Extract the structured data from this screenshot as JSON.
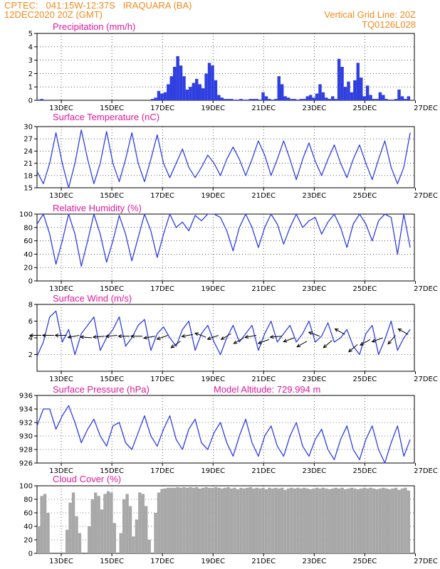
{
  "header": {
    "line1": "CPTEC:   041:15W-12:37S   IRAQUARA (BA)",
    "line2": "12DEC2020 20Z (GMT)",
    "vertical_grid": "Vertical Grid Line: 20Z",
    "code": "TQ0126L028"
  },
  "colors": {
    "series": "#2f3fe0",
    "cloud": "#a8a8a8",
    "title": "#e0199b",
    "header": "#f08a1c"
  },
  "x_dates": [
    "13DEC",
    "15DEC",
    "17DEC",
    "19DEC",
    "21DEC",
    "23DEC",
    "25DEC",
    "27DEC"
  ],
  "chart_data": [
    {
      "id": "precip",
      "type": "bar",
      "title": "Precipitation (mm/h)",
      "ylim": [
        0,
        5
      ],
      "yticks": [
        0,
        1,
        2,
        3,
        4,
        5
      ],
      "x_hours": [
        0,
        3,
        108,
        111,
        114,
        117,
        120,
        123,
        126,
        129,
        132,
        135,
        138,
        141,
        144,
        147,
        150,
        153,
        156,
        159,
        162,
        165,
        168,
        171,
        174,
        177,
        180,
        183,
        186,
        189,
        192,
        195,
        198,
        201,
        204,
        207,
        210,
        213,
        216,
        219,
        222,
        225,
        228,
        231,
        234,
        237,
        240,
        243,
        246,
        249,
        252,
        255,
        258,
        261,
        264,
        267,
        270,
        273,
        276,
        279,
        282,
        285,
        288,
        291,
        294,
        297,
        300,
        303,
        306,
        309,
        312,
        315,
        318,
        321,
        324,
        327,
        330,
        333,
        336,
        339,
        342,
        345,
        348,
        351
      ],
      "values": [
        0.05,
        0.1,
        0.1,
        0.2,
        0.7,
        0.5,
        0.6,
        1.2,
        1.8,
        2.5,
        3.3,
        2.6,
        1.8,
        0.8,
        1.0,
        1.3,
        1.6,
        1.2,
        0.9,
        2.0,
        2.8,
        2.6,
        1.5,
        0.4,
        0.2,
        0.1,
        0.1,
        0.1,
        0.05,
        0.05,
        0.1,
        0.05,
        0.05,
        0.1,
        0.1,
        0.1,
        0.05,
        0.6,
        0.3,
        0.1,
        0.05,
        0.1,
        1.8,
        1.2,
        0.3,
        0.2,
        0.1,
        0.1,
        0.05,
        0.1,
        0.1,
        0.3,
        0.4,
        0.2,
        0.5,
        1.2,
        0.6,
        0.2,
        0.1,
        0.3,
        0.1,
        3.1,
        2.5,
        1.0,
        1.4,
        0.6,
        1.5,
        2.8,
        1.7,
        0.3,
        1.1,
        0.4,
        0.1,
        0.1,
        0.6,
        0.4,
        0.1,
        0.05,
        0.05,
        0.1,
        0.8,
        0.3,
        0.1,
        0.3
      ]
    },
    {
      "id": "temp",
      "type": "line",
      "title": "Surface Temperature (nC)",
      "ylim": [
        15,
        30
      ],
      "yticks": [
        15,
        18,
        21,
        24,
        27,
        30
      ],
      "x_hours": [
        0,
        6,
        12,
        18,
        24,
        30,
        36,
        42,
        48,
        54,
        60,
        66,
        72,
        78,
        84,
        90,
        96,
        102,
        108,
        114,
        120,
        126,
        132,
        138,
        144,
        150,
        156,
        162,
        168,
        174,
        180,
        186,
        192,
        198,
        204,
        210,
        216,
        222,
        228,
        234,
        240,
        246,
        252,
        258,
        264,
        270,
        276,
        282,
        288,
        294,
        300,
        306,
        312,
        318,
        324,
        330,
        336,
        342,
        348,
        354
      ],
      "values": [
        19,
        16,
        21,
        28.5,
        21,
        15,
        21,
        29.2,
        22,
        16,
        21,
        28.8,
        21,
        16.5,
        22,
        28.5,
        21,
        16.5,
        22,
        28,
        21,
        17.5,
        21,
        24.5,
        20,
        17.5,
        20,
        23,
        21,
        18,
        22,
        25,
        22,
        18,
        22,
        26.5,
        23,
        18,
        22,
        26.5,
        22,
        17,
        22,
        26,
        21.5,
        18,
        22,
        25.5,
        21,
        17.5,
        22,
        25.5,
        21,
        17,
        22,
        26.5,
        20,
        16,
        20,
        28.5
      ]
    },
    {
      "id": "rh",
      "type": "line",
      "title": "Relative Humidity (%)",
      "ylim": [
        0,
        100
      ],
      "yticks": [
        0,
        20,
        40,
        60,
        80,
        100
      ],
      "x_hours": [
        0,
        6,
        12,
        18,
        24,
        30,
        36,
        42,
        48,
        54,
        60,
        66,
        72,
        78,
        84,
        90,
        96,
        102,
        108,
        114,
        120,
        126,
        132,
        138,
        144,
        150,
        156,
        162,
        168,
        174,
        180,
        186,
        192,
        198,
        204,
        210,
        216,
        222,
        228,
        234,
        240,
        246,
        252,
        258,
        264,
        270,
        276,
        282,
        288,
        294,
        300,
        306,
        312,
        318,
        324,
        330,
        336,
        342,
        348,
        354
      ],
      "values": [
        85,
        100,
        70,
        25,
        60,
        100,
        70,
        22,
        60,
        100,
        70,
        28,
        60,
        98,
        70,
        30,
        65,
        100,
        75,
        35,
        70,
        100,
        80,
        88,
        75,
        98,
        90,
        100,
        100,
        95,
        75,
        45,
        80,
        100,
        80,
        50,
        80,
        100,
        85,
        55,
        80,
        100,
        80,
        90,
        95,
        70,
        88,
        100,
        80,
        50,
        85,
        100,
        85,
        60,
        90,
        100,
        95,
        40,
        100,
        50
      ]
    },
    {
      "id": "wind",
      "type": "line",
      "title": "Surface Wind (m/s)",
      "ylim": [
        0,
        8
      ],
      "yticks": [
        2,
        4,
        6,
        8
      ],
      "x_hours": [
        0,
        6,
        12,
        18,
        24,
        30,
        36,
        42,
        48,
        54,
        60,
        66,
        72,
        78,
        84,
        90,
        96,
        102,
        108,
        114,
        120,
        126,
        132,
        138,
        144,
        150,
        156,
        162,
        168,
        174,
        180,
        186,
        192,
        198,
        204,
        210,
        216,
        222,
        228,
        234,
        240,
        246,
        252,
        258,
        264,
        270,
        276,
        282,
        288,
        294,
        300,
        306,
        312,
        318,
        324,
        330,
        336,
        342,
        348,
        354
      ],
      "values": [
        1.8,
        3.5,
        6.5,
        7.2,
        3.5,
        5,
        2,
        4.5,
        5.5,
        6.5,
        2.5,
        4,
        5,
        6.5,
        3,
        4,
        5.5,
        6.2,
        2.5,
        4.5,
        5.3,
        4,
        3,
        5,
        6,
        2.5,
        4.5,
        5.5,
        3.5,
        2,
        4,
        5.5,
        3.5,
        4.5,
        5.5,
        2.5,
        4.5,
        6,
        3.5,
        4.5,
        5.5,
        3.5,
        4.5,
        6,
        3.5,
        4.2,
        5.8,
        3.5,
        4,
        5,
        3,
        2,
        4.5,
        5.5,
        2,
        3.8,
        6,
        2.5,
        4,
        5
      ],
      "arrows_x_hours": [
        0,
        12,
        24,
        36,
        48,
        60,
        72,
        84,
        96,
        108,
        120,
        132,
        144,
        156,
        168,
        180,
        192,
        204,
        216,
        228,
        240,
        252,
        264,
        276,
        288,
        300,
        312,
        324,
        336,
        348
      ],
      "arrows_y": [
        4.3,
        4.3,
        4.3,
        4.3,
        4.0,
        4.2,
        4.3,
        4.2,
        4.2,
        4.2,
        4.3,
        3.6,
        4.4,
        4.1,
        4.3,
        4.5,
        4.0,
        4.3,
        3.8,
        4.2,
        4.0,
        3.6,
        4.2,
        3.7,
        4.4,
        3.2,
        3.8,
        4.0,
        4.3,
        4.4
      ],
      "arrows_angle_deg": [
        180,
        180,
        180,
        190,
        175,
        185,
        185,
        180,
        180,
        190,
        200,
        215,
        190,
        160,
        200,
        210,
        210,
        190,
        200,
        185,
        200,
        210,
        160,
        220,
        150,
        220,
        210,
        200,
        230,
        150
      ]
    },
    {
      "id": "pres",
      "type": "line",
      "title": "Surface Pressure (hPa)",
      "annotation": "Model Altitude: 729.994 m",
      "ylim": [
        926,
        936
      ],
      "yticks": [
        926,
        928,
        930,
        932,
        934,
        936
      ],
      "x_hours": [
        0,
        6,
        12,
        18,
        24,
        30,
        36,
        42,
        48,
        54,
        60,
        66,
        72,
        78,
        84,
        90,
        96,
        102,
        108,
        114,
        120,
        126,
        132,
        138,
        144,
        150,
        156,
        162,
        168,
        174,
        180,
        186,
        192,
        198,
        204,
        210,
        216,
        222,
        228,
        234,
        240,
        246,
        252,
        258,
        264,
        270,
        276,
        282,
        288,
        294,
        300,
        306,
        312,
        318,
        324,
        330,
        336,
        342,
        348,
        354
      ],
      "values": [
        931.5,
        934,
        934,
        931,
        933,
        934.5,
        932,
        929,
        931,
        932.5,
        930,
        928.5,
        931.5,
        932,
        929,
        928,
        930.5,
        933,
        930,
        928.5,
        931,
        933,
        929.5,
        928,
        931,
        932.5,
        929,
        928,
        930.5,
        932,
        929,
        927,
        930,
        932.5,
        929,
        927,
        930,
        931.5,
        928.5,
        927,
        930,
        932,
        928.5,
        927,
        929.5,
        931,
        928,
        926.5,
        929.5,
        931.5,
        928,
        926.5,
        929.5,
        931.5,
        928,
        926,
        929,
        931.5,
        927,
        929.5
      ]
    },
    {
      "id": "cloud",
      "type": "bar",
      "title": "Cloud Cover (%)",
      "ylim": [
        0,
        100
      ],
      "yticks": [
        0,
        20,
        40,
        60,
        80,
        100
      ],
      "x_hours": [
        0,
        3,
        6,
        9,
        12,
        15,
        18,
        21,
        24,
        27,
        30,
        33,
        36,
        39,
        42,
        45,
        48,
        51,
        54,
        57,
        60,
        63,
        66,
        69,
        72,
        75,
        78,
        81,
        84,
        87,
        90,
        93,
        96,
        99,
        102,
        105,
        108,
        111,
        114,
        117,
        120,
        123,
        126,
        129,
        132,
        135,
        138,
        141,
        144,
        147,
        150,
        153,
        156,
        159,
        162,
        165,
        168,
        171,
        174,
        177,
        180,
        183,
        186,
        189,
        192,
        195,
        198,
        201,
        204,
        207,
        210,
        213,
        216,
        219,
        222,
        225,
        228,
        231,
        234,
        237,
        240,
        243,
        246,
        249,
        252,
        255,
        258,
        261,
        264,
        267,
        270,
        273,
        276,
        279,
        282,
        285,
        288,
        291,
        294,
        297,
        300,
        303,
        306,
        309,
        312,
        315,
        318,
        321,
        324,
        327,
        330,
        333,
        336,
        339,
        342,
        345,
        348,
        351
      ],
      "values": [
        40,
        85,
        88,
        60,
        0,
        0,
        0,
        0,
        0,
        35,
        75,
        90,
        55,
        30,
        0,
        0,
        40,
        80,
        90,
        85,
        65,
        88,
        92,
        90,
        45,
        0,
        30,
        80,
        88,
        70,
        25,
        50,
        90,
        88,
        70,
        20,
        0,
        60,
        90,
        95,
        96,
        97,
        97,
        97,
        98,
        97,
        98,
        97,
        98,
        97,
        98,
        96,
        97,
        98,
        97,
        97,
        98,
        97,
        96,
        97,
        98,
        96,
        97,
        95,
        97,
        96,
        97,
        98,
        96,
        97,
        96,
        97,
        95,
        97,
        96,
        97,
        96,
        97,
        94,
        96,
        97,
        96,
        97,
        96,
        97,
        96,
        95,
        96,
        97,
        96,
        97,
        96,
        95,
        96,
        97,
        96,
        97,
        95,
        96,
        97,
        96,
        95,
        96,
        97,
        96,
        97,
        96,
        95,
        96,
        97,
        96,
        95,
        96,
        97,
        94,
        96,
        97,
        93
      ]
    }
  ]
}
